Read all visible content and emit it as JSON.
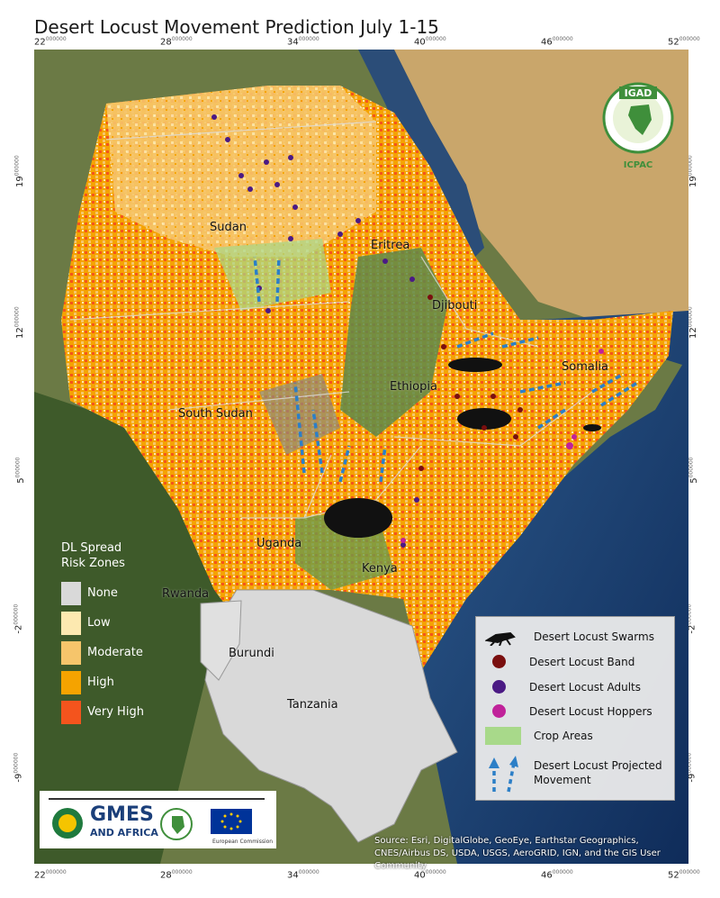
{
  "title": "Desert Locust Movement Prediction July 1-15",
  "ticks": {
    "top": [
      "22",
      "28",
      "34",
      "40",
      "46",
      "52"
    ],
    "bottom": [
      "22",
      "28",
      "34",
      "40",
      "46",
      "52"
    ],
    "left": [
      "19",
      "12",
      "5",
      "-2",
      "-9"
    ],
    "right": [
      "19",
      "12",
      "5",
      "-2",
      "-9"
    ],
    "decimals": "000000"
  },
  "countries": {
    "sudan": "Sudan",
    "eritrea": "Eritrea",
    "djibouti": "Djibouti",
    "ethiopia": "Ethiopia",
    "somalia": "Somalia",
    "south_sudan": "South Sudan",
    "uganda": "Uganda",
    "kenya": "Kenya",
    "rwanda": "Rwanda",
    "burundi": "Burundi",
    "tanzania": "Tanzania"
  },
  "risk_legend": {
    "title_line1": "DL Spread",
    "title_line2": "Risk Zones",
    "items": [
      {
        "label": "None",
        "color": "#d9d9d9"
      },
      {
        "label": "Low",
        "color": "#fde9b0"
      },
      {
        "label": "Moderate",
        "color": "#f6c56b"
      },
      {
        "label": "High",
        "color": "#f5a300"
      },
      {
        "label": "Very High",
        "color": "#f4541d"
      }
    ]
  },
  "point_legend": {
    "swarms": "Desert Locust Swarms",
    "band": "Desert Locust Band",
    "adults": "Desert Locust Adults",
    "hoppers": "Desert Locust Hoppers",
    "crop": "Crop Areas",
    "movement_line1": "Desert Locust Projected",
    "movement_line2": "Movement",
    "colors": {
      "band": "#7a0f0f",
      "adults": "#4b1a84",
      "hoppers": "#c0229a",
      "crop": "#a8d98a",
      "movement": "#2c7fc7"
    }
  },
  "igad": {
    "name": "IGAD",
    "sub": "ICPAC"
  },
  "gmes": {
    "line1": "GMES",
    "line2": "AND AFRICA"
  },
  "eu": {
    "caption": "European Commission"
  },
  "source": "Source: Esri, DigitalGlobe, GeoEye, Earthstar Geographics, CNES/Airbus DS, USDA, USGS, AeroGRID, IGN, and the GIS User Community"
}
